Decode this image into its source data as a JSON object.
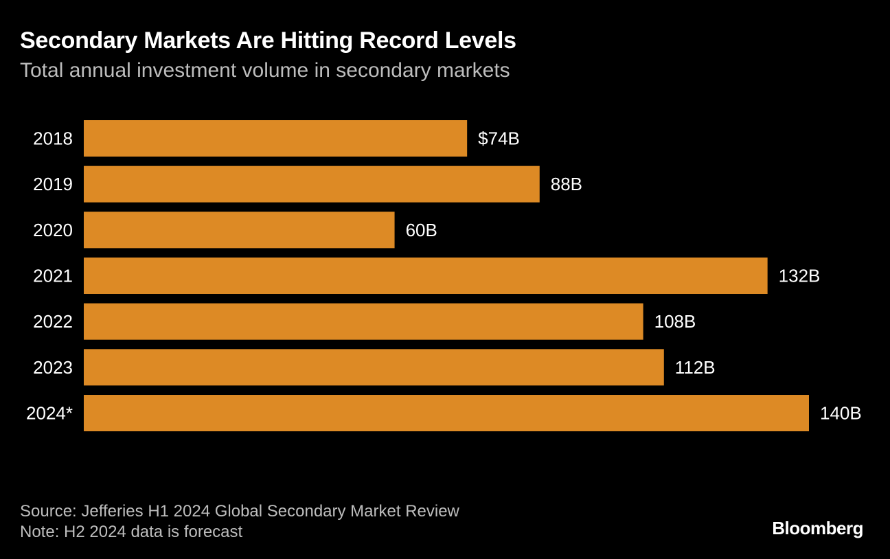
{
  "header": {
    "title": "Secondary Markets Are Hitting Record Levels",
    "subtitle": "Total annual investment volume in secondary markets"
  },
  "footer": {
    "source": "Source: Jefferies H1 2024 Global Secondary Market Review",
    "note": "Note: H2 2024 data is forecast",
    "brand": "Bloomberg"
  },
  "colors": {
    "background": "#000000",
    "bar": "#dd8a25",
    "text": "#ffffff",
    "muted": "#bdbdbd"
  },
  "chart_data": {
    "type": "bar",
    "orientation": "horizontal",
    "categories": [
      "2018",
      "2019",
      "2020",
      "2021",
      "2022",
      "2023",
      "2024*"
    ],
    "values": [
      74,
      88,
      60,
      132,
      108,
      112,
      140
    ],
    "data_labels": [
      "$74B",
      "88B",
      "60B",
      "132B",
      "108B",
      "112B",
      "140B"
    ],
    "unit": "$B",
    "xlim": [
      0,
      140
    ],
    "grid": false,
    "legend": "none"
  }
}
